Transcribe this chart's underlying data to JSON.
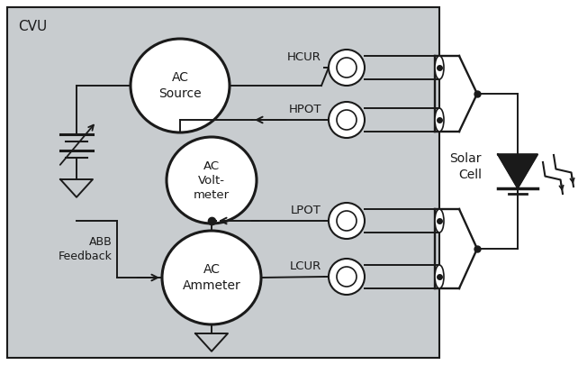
{
  "fig_w": 6.42,
  "fig_h": 4.05,
  "dpi": 100,
  "bg_color": "#c8cccf",
  "white": "#ffffff",
  "black": "#1a1a1a",
  "lw": 1.4,
  "cvu_label": "CVU",
  "instrument_labels": [
    "AC\nSource",
    "AC\nVolt-\nmeter",
    "AC\nAmmeter"
  ],
  "connector_labels": [
    "HCUR",
    "HPOT",
    "LPOT",
    "LCUR"
  ],
  "solar_label": "Solar\nCell",
  "abb_label": "ABB\nFeedback"
}
